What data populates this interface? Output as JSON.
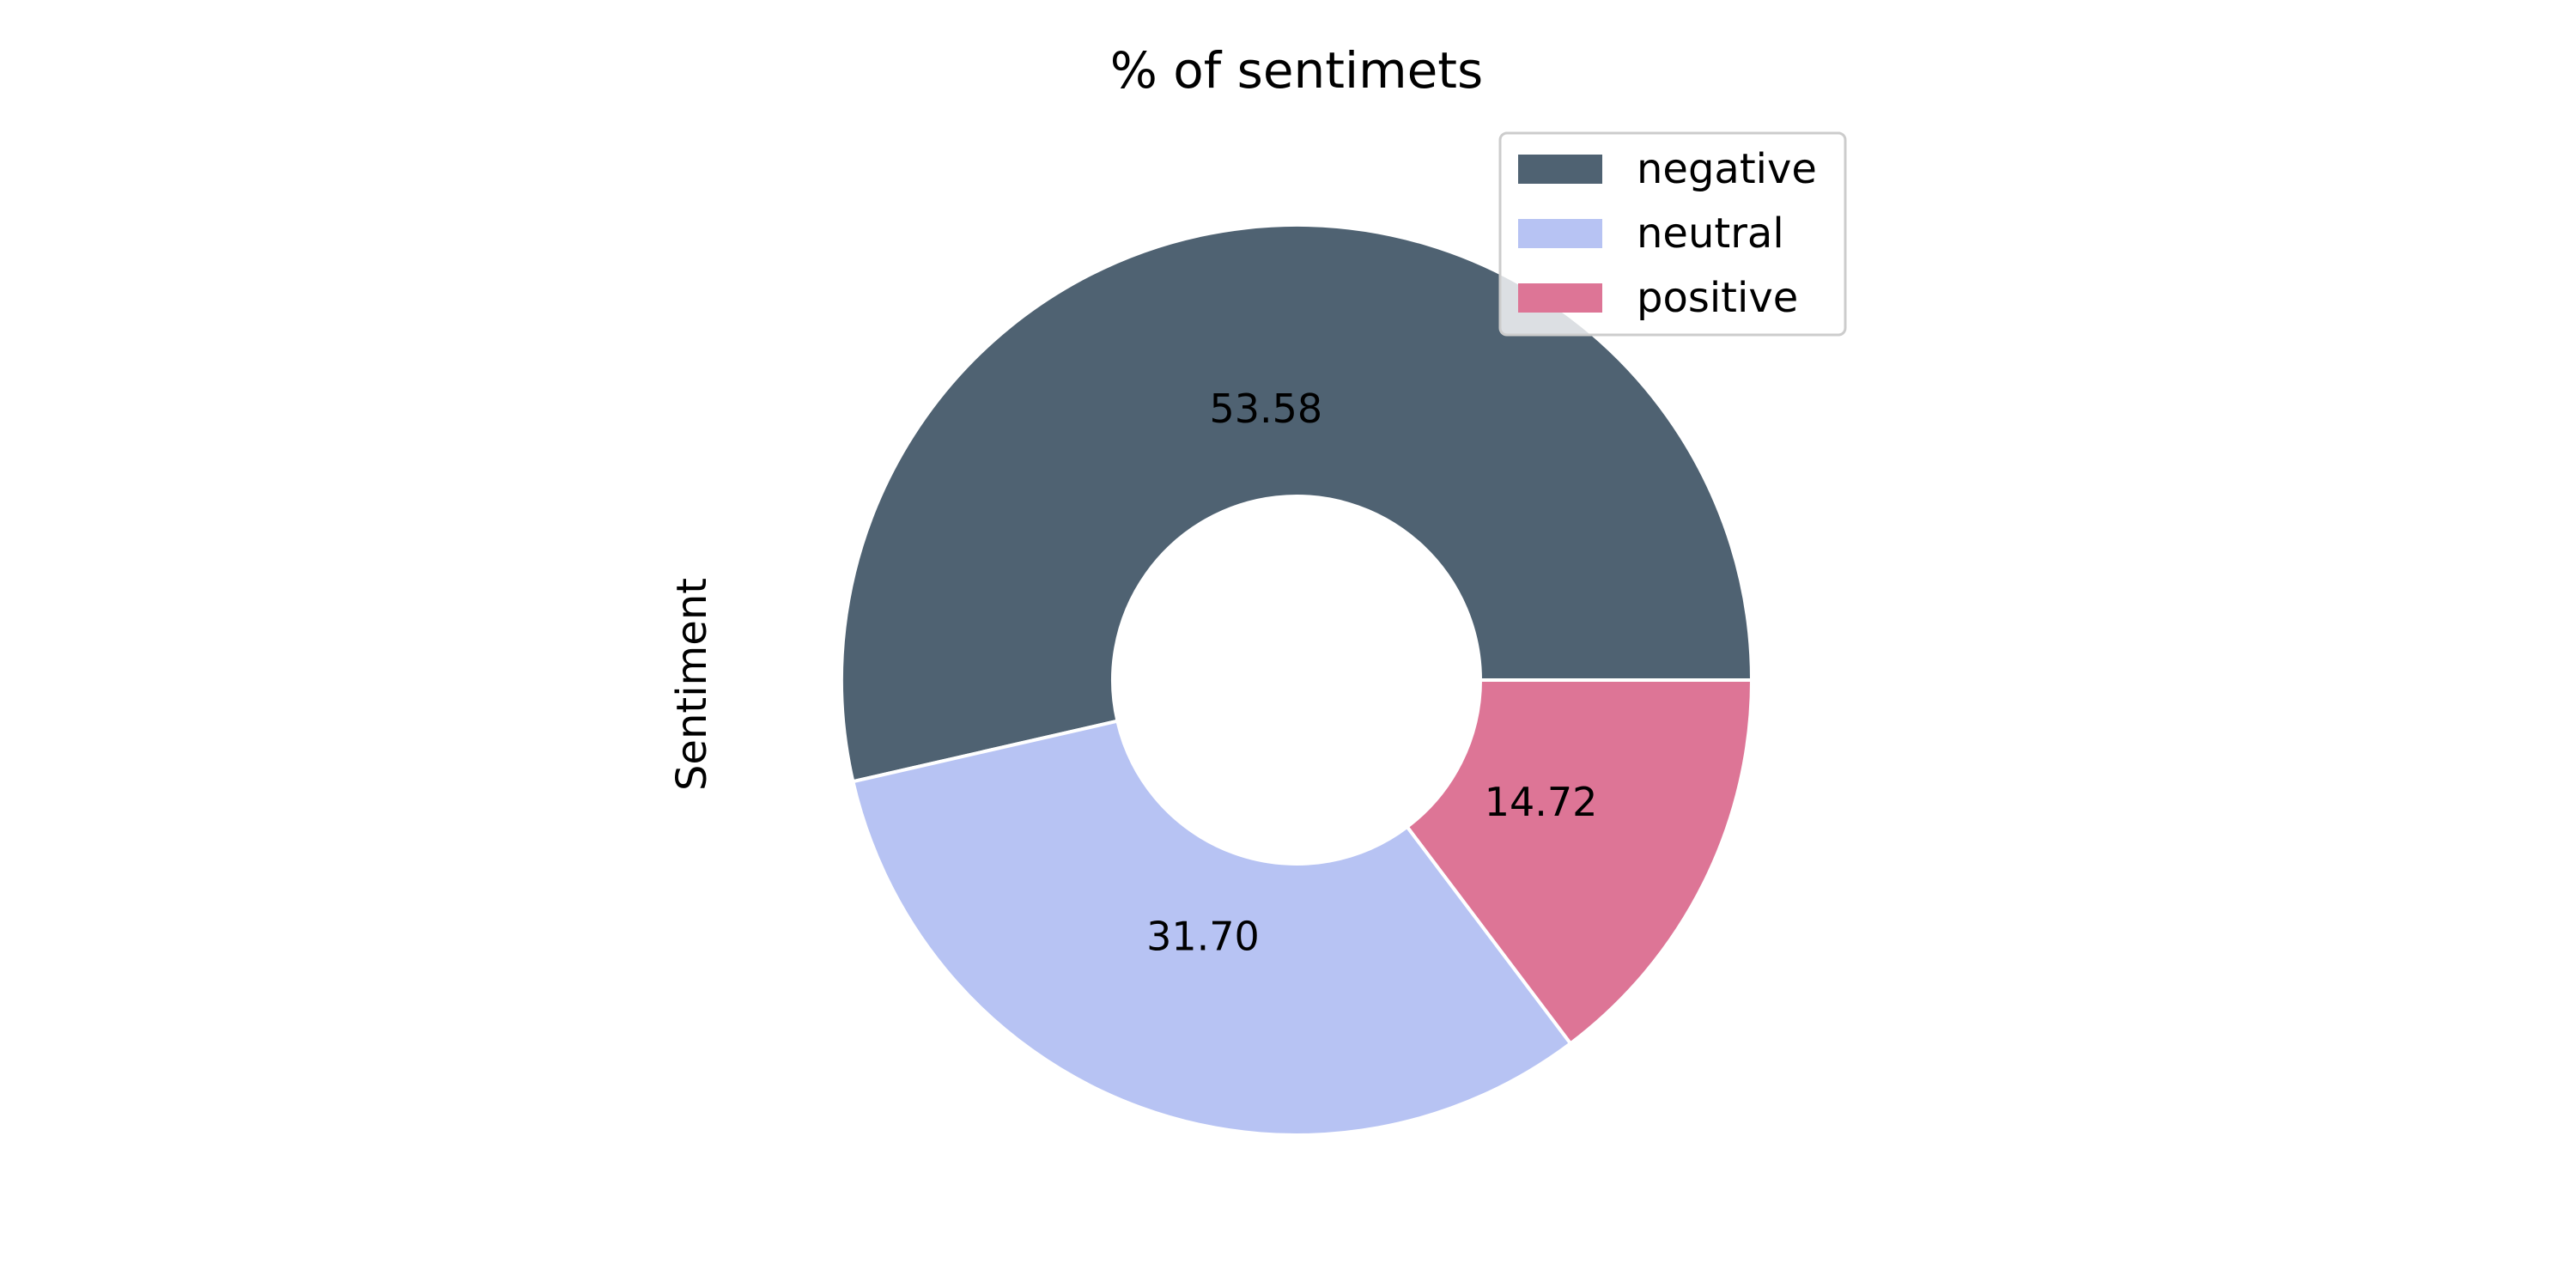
{
  "chart_data": {
    "type": "pie",
    "title": "% of sentimets",
    "ylabel": "Sentiment",
    "donut": true,
    "start_angle_deg": 0,
    "direction": "counterclockwise",
    "legend_position": "top-right",
    "categories": [
      "negative",
      "neutral",
      "positive"
    ],
    "values": [
      53.58,
      31.7,
      14.72
    ],
    "labels": [
      "53.58",
      "31.70",
      "14.72"
    ],
    "colors": [
      "#4f6272",
      "#b7c3f3",
      "#dd7596"
    ],
    "edge_color": "#ffffff"
  }
}
